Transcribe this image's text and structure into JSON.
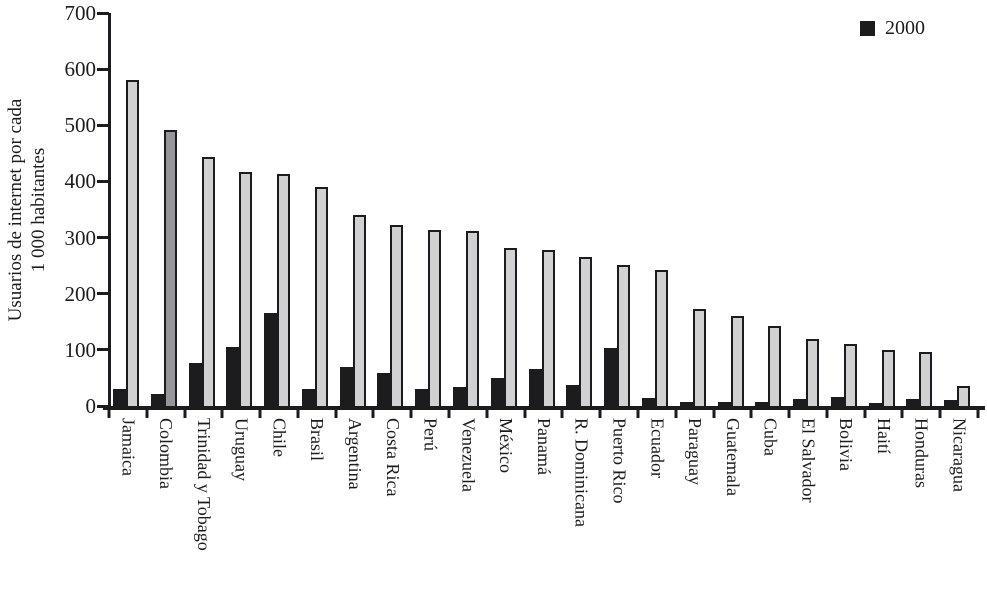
{
  "figure": {
    "ylabel_line1": "Usuarios de internet por cada",
    "ylabel_line2": "1 000 habitantes"
  },
  "legend": {
    "items": [
      {
        "label": "2000",
        "color": "#1c1c1e"
      }
    ]
  },
  "chart_data": {
    "type": "bar",
    "title": "",
    "xlabel": "",
    "ylabel": "Usuarios de internet por cada 1 000 habitantes",
    "ylim": [
      0,
      700
    ],
    "yticks": [
      0,
      100,
      200,
      300,
      400,
      500,
      600,
      700
    ],
    "grid": false,
    "legend_position": "top-right",
    "bar_border_color": "#1c1c1e",
    "categories": [
      "Jamaica",
      "Colombia",
      "Trinidad y Tobago",
      "Uruguay",
      "Chile",
      "Brasil",
      "Argentina",
      "Costa Rica",
      "Perú",
      "Venezuela",
      "México",
      "Panamá",
      "R. Dominicana",
      "Puerto Rico",
      "Ecuador",
      "Paraguay",
      "Guatemala",
      "Cuba",
      "El Salvador",
      "Bolivia",
      "Haití",
      "Honduras",
      "Nicaragua"
    ],
    "series": [
      {
        "name": "2000",
        "in_legend": true,
        "color": "#1c1c1e",
        "values": [
          30,
          22,
          77,
          105,
          166,
          30,
          70,
          58,
          31,
          33,
          50,
          66,
          37,
          103,
          15,
          8,
          8,
          7,
          13,
          16,
          4,
          12,
          10
        ]
      },
      {
        "name": "",
        "in_legend": false,
        "color": "#d1d1d3",
        "values": [
          580,
          492,
          443,
          417,
          413,
          390,
          340,
          323,
          313,
          311,
          281,
          278,
          266,
          251,
          243,
          173,
          161,
          142,
          120,
          111,
          100,
          97,
          35
        ],
        "point_color_overrides": {
          "Colombia": "#95959a"
        }
      }
    ]
  }
}
